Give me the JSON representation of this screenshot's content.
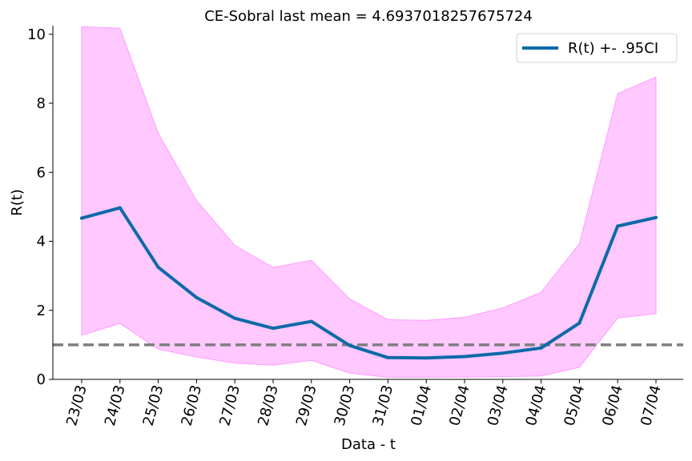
{
  "chart_data": {
    "type": "line",
    "title": "CE-Sobral last mean = 4.6937018257675724",
    "xlabel": "Data - t",
    "ylabel": "R(t)",
    "categories": [
      "23/03",
      "24/03",
      "25/03",
      "26/03",
      "27/03",
      "28/03",
      "29/03",
      "30/03",
      "31/03",
      "01/04",
      "02/04",
      "03/04",
      "04/04",
      "05/04",
      "06/04",
      "07/04"
    ],
    "series": [
      {
        "name": "R(t) +- .95CI",
        "values": [
          4.67,
          4.97,
          3.25,
          2.37,
          1.77,
          1.48,
          1.68,
          0.98,
          0.63,
          0.62,
          0.66,
          0.76,
          0.91,
          1.63,
          4.44,
          4.69
        ],
        "lower": [
          1.28,
          1.62,
          0.88,
          0.65,
          0.47,
          0.41,
          0.55,
          0.18,
          0.06,
          0.06,
          0.07,
          0.08,
          0.1,
          0.35,
          1.78,
          1.9
        ],
        "upper": [
          10.22,
          10.17,
          7.13,
          5.18,
          3.88,
          3.24,
          3.45,
          2.33,
          1.73,
          1.71,
          1.8,
          2.07,
          2.52,
          3.93,
          8.28,
          8.76
        ]
      }
    ],
    "reference_line": 1.0,
    "ylim": [
      0,
      10.25
    ],
    "yticks": [
      "0",
      "2",
      "4",
      "6",
      "8",
      "10"
    ],
    "legend": "top-right",
    "grid": false,
    "colors": {
      "line": "#0d6aa8",
      "band": "#ffc8ff",
      "band_edge": "#ff9cff",
      "reference": "#7f7f7f"
    }
  }
}
